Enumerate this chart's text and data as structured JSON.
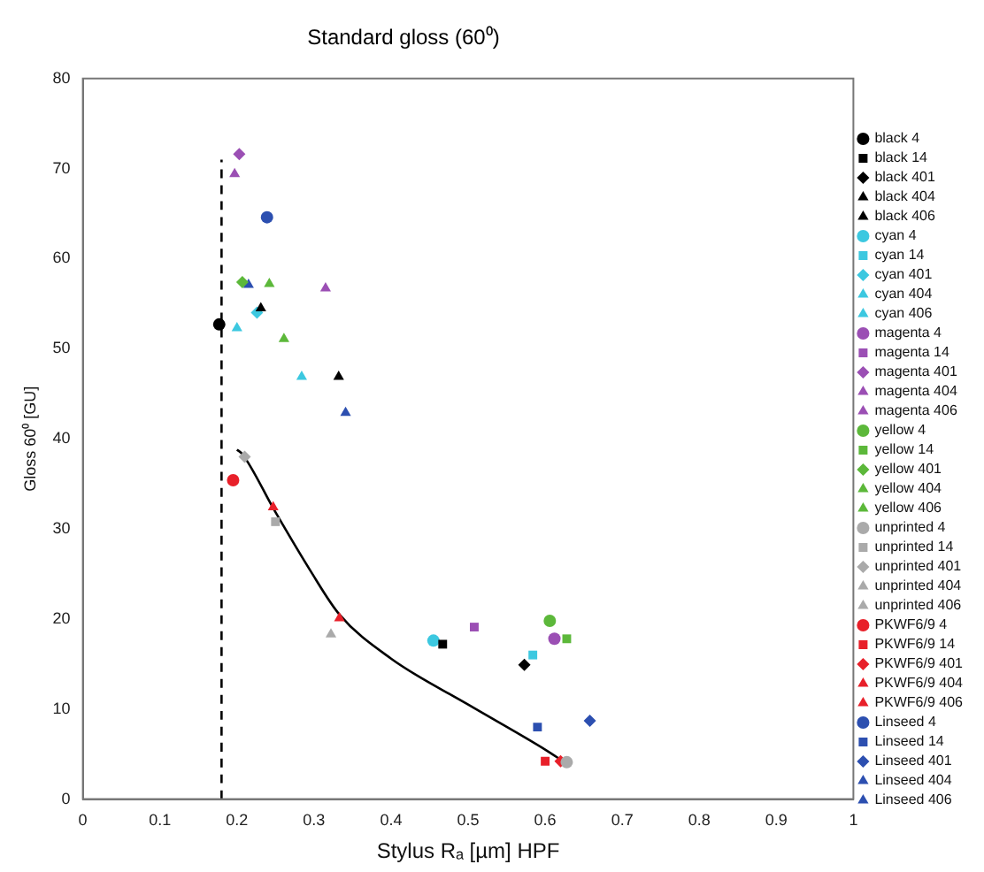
{
  "chart_data": {
    "type": "scatter",
    "title": "Standard gloss (60⁰)",
    "xlabel": "Stylus Rₐ [µm] HPF",
    "ylabel": "Gloss 60⁰ [GU]",
    "xlim": [
      0,
      1
    ],
    "xticks": [
      0,
      0.1,
      0.2,
      0.3,
      0.4,
      0.5,
      0.6,
      0.7,
      0.8,
      0.9,
      1
    ],
    "ylim": [
      0,
      80
    ],
    "yticks": [
      0,
      10,
      20,
      30,
      40,
      50,
      60,
      70,
      80
    ],
    "grid": false,
    "legend": "right",
    "series": [
      {
        "name": "black 4",
        "color": "#000000",
        "marker": "circle",
        "x": [
          0.177
        ],
        "values": [
          52.7
        ]
      },
      {
        "name": "black 14",
        "color": "#000000",
        "marker": "square",
        "x": [
          0.467
        ],
        "values": [
          17.2
        ]
      },
      {
        "name": "black 401",
        "color": "#000000",
        "marker": "diamond",
        "x": [
          0.573
        ],
        "values": [
          14.9
        ]
      },
      {
        "name": "black 404",
        "color": "#000000",
        "marker": "triangle",
        "x": [
          0.231
        ],
        "values": [
          54.5
        ]
      },
      {
        "name": "black 406",
        "color": "#000000",
        "marker": "triangle",
        "x": [
          0.332
        ],
        "values": [
          46.9
        ]
      },
      {
        "name": "cyan 4",
        "color": "#3cc8e0",
        "marker": "circle",
        "x": [
          0.455
        ],
        "values": [
          17.6
        ]
      },
      {
        "name": "cyan 14",
        "color": "#3cc8e0",
        "marker": "square",
        "x": [
          0.584
        ],
        "values": [
          16
        ]
      },
      {
        "name": "cyan 401",
        "color": "#3cc8e0",
        "marker": "diamond",
        "x": [
          0.226
        ],
        "values": [
          54
        ]
      },
      {
        "name": "cyan 404",
        "color": "#3cc8e0",
        "marker": "triangle",
        "x": [
          0.2
        ],
        "values": [
          52.3
        ]
      },
      {
        "name": "cyan 406",
        "color": "#3cc8e0",
        "marker": "triangle",
        "x": [
          0.284
        ],
        "values": [
          46.9
        ]
      },
      {
        "name": "magenta 4",
        "color": "#9b4fb4",
        "marker": "circle",
        "x": [
          0.612
        ],
        "values": [
          17.8
        ]
      },
      {
        "name": "magenta 14",
        "color": "#9b4fb4",
        "marker": "square",
        "x": [
          0.508
        ],
        "values": [
          19.1
        ]
      },
      {
        "name": "magenta 401",
        "color": "#9b4fb4",
        "marker": "diamond",
        "x": [
          0.203
        ],
        "values": [
          71.6
        ]
      },
      {
        "name": "magenta 404",
        "color": "#9b4fb4",
        "marker": "triangle",
        "x": [
          0.197
        ],
        "values": [
          69.4
        ]
      },
      {
        "name": "magenta 406",
        "color": "#9b4fb4",
        "marker": "triangle",
        "x": [
          0.315
        ],
        "values": [
          56.7
        ]
      },
      {
        "name": "yellow 4",
        "color": "#5cb83a",
        "marker": "circle",
        "x": [
          0.606
        ],
        "values": [
          19.8
        ]
      },
      {
        "name": "yellow 14",
        "color": "#5cb83a",
        "marker": "square",
        "x": [
          0.628
        ],
        "values": [
          17.8
        ]
      },
      {
        "name": "yellow 401",
        "color": "#5cb83a",
        "marker": "diamond",
        "x": [
          0.207
        ],
        "values": [
          57.4
        ]
      },
      {
        "name": "yellow 404",
        "color": "#5cb83a",
        "marker": "triangle",
        "x": [
          0.242
        ],
        "values": [
          57.2
        ]
      },
      {
        "name": "yellow 406",
        "color": "#5cb83a",
        "marker": "triangle",
        "x": [
          0.261
        ],
        "values": [
          51.1
        ]
      },
      {
        "name": "unprinted 4",
        "color": "#aaaaaa",
        "marker": "circle",
        "x": [
          0.628
        ],
        "values": [
          4.1
        ]
      },
      {
        "name": "unprinted 14",
        "color": "#aaaaaa",
        "marker": "square",
        "x": [
          0.25
        ],
        "values": [
          30.8
        ]
      },
      {
        "name": "unprinted 401",
        "color": "#aaaaaa",
        "marker": "diamond",
        "x": [
          0.21
        ],
        "values": [
          38
        ]
      },
      {
        "name": "unprinted 404",
        "color": "#aaaaaa",
        "marker": "triangle"
      },
      {
        "name": "unprinted 406",
        "color": "#aaaaaa",
        "marker": "triangle",
        "x": [
          0.322
        ],
        "values": [
          18.3
        ]
      },
      {
        "name": "PKWF6/9 4",
        "color": "#e8202a",
        "marker": "circle",
        "x": [
          0.195
        ],
        "values": [
          35.4
        ]
      },
      {
        "name": "PKWF6/9 14",
        "color": "#e8202a",
        "marker": "square",
        "x": [
          0.6
        ],
        "values": [
          4.2
        ]
      },
      {
        "name": "PKWF6/9 401",
        "color": "#e8202a",
        "marker": "diamond",
        "x": [
          0.62
        ],
        "values": [
          4.2
        ]
      },
      {
        "name": "PKWF6/9 404",
        "color": "#e8202a",
        "marker": "triangle",
        "x": [
          0.247
        ],
        "values": [
          32.4
        ]
      },
      {
        "name": "PKWF6/9 406",
        "color": "#e8202a",
        "marker": "triangle",
        "x": [
          0.333
        ],
        "values": [
          20.1
        ]
      },
      {
        "name": "Linseed 4",
        "color": "#2c4fb0",
        "marker": "circle",
        "x": [
          0.239
        ],
        "values": [
          64.6
        ]
      },
      {
        "name": "Linseed 14",
        "color": "#2c4fb0",
        "marker": "square",
        "x": [
          0.59
        ],
        "values": [
          8
        ]
      },
      {
        "name": "Linseed 401",
        "color": "#2c4fb0",
        "marker": "diamond",
        "x": [
          0.658
        ],
        "values": [
          8.7
        ]
      },
      {
        "name": "Linseed 404",
        "color": "#2c4fb0",
        "marker": "triangle",
        "x": [
          0.215
        ],
        "values": [
          57.1
        ]
      },
      {
        "name": "Linseed 406",
        "color": "#2c4fb0",
        "marker": "triangle",
        "x": [
          0.341
        ],
        "values": [
          42.9
        ]
      },
      {
        "type": "line",
        "color": "#000000",
        "marker": "none",
        "x": [
          0.2,
          0.207,
          0.249,
          0.295,
          0.333,
          0.4,
          0.5,
          0.6,
          0.625
        ],
        "values": [
          38.8,
          38.3,
          32,
          25.4,
          20.5,
          15.6,
          10.5,
          5.5,
          4.1
        ]
      },
      {
        "type": "line",
        "color": "#000000",
        "marker": "none",
        "line_style": "dashed",
        "x": [
          0.18,
          0.18
        ],
        "values": [
          0,
          71
        ]
      }
    ]
  }
}
